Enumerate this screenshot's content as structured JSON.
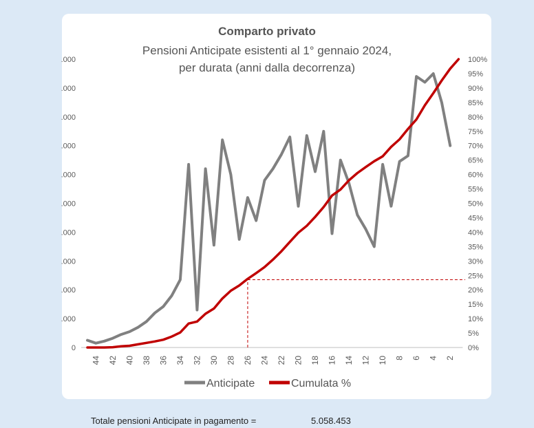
{
  "chart_data": {
    "type": "line",
    "title": "Comparto privato",
    "subtitle_line1": "Pensioni Anticipate esistenti al 1° gennaio 2024,",
    "subtitle_line2": "per durata (anni dalla decorrenza)",
    "x": [
      45,
      44,
      43,
      42,
      41,
      40,
      39,
      38,
      37,
      36,
      35,
      34,
      33,
      32,
      31,
      30,
      29,
      28,
      27,
      26,
      25,
      24,
      23,
      22,
      21,
      20,
      19,
      18,
      17,
      16,
      15,
      14,
      13,
      12,
      11,
      10,
      9,
      8,
      7,
      6,
      5,
      4,
      3,
      2,
      1
    ],
    "x_ticks": [
      "44",
      "42",
      "40",
      "38",
      "36",
      "34",
      "32",
      "30",
      "28",
      "26",
      "24",
      "22",
      "20",
      "18",
      "16",
      "14",
      "12",
      "10",
      "8",
      "6",
      "4",
      "2"
    ],
    "left_tick_labels": [
      "0",
      ".000",
      ".000",
      ".000",
      ".000",
      ".000",
      ".000",
      ".000",
      ".000",
      ".000",
      ".000"
    ],
    "right_tick_labels": [
      "0%",
      "5%",
      "10%",
      "15%",
      "20%",
      "25%",
      "30%",
      "35%",
      "40%",
      "45%",
      "50%",
      "55%",
      "60%",
      "65%",
      "70%",
      "75%",
      "80%",
      "85%",
      "90%",
      "95%",
      "100%"
    ],
    "y_left_range": [
      0,
      10
    ],
    "y_right_range": [
      0,
      100
    ],
    "series": [
      {
        "name": "Anticipate",
        "color": "#808080",
        "axis": "left",
        "values": [
          0.25,
          0.15,
          0.22,
          0.32,
          0.45,
          0.55,
          0.7,
          0.9,
          1.2,
          1.42,
          1.8,
          2.35,
          6.35,
          1.3,
          6.2,
          3.55,
          7.2,
          6.0,
          3.75,
          5.2,
          4.4,
          5.8,
          6.2,
          6.7,
          7.3,
          4.9,
          7.35,
          6.1,
          7.5,
          3.95,
          6.5,
          5.7,
          4.6,
          4.1,
          3.5,
          6.35,
          4.9,
          6.45,
          6.65,
          9.4,
          9.2,
          9.5,
          8.5,
          7.0,
          null
        ]
      },
      {
        "name": "Cumulata %",
        "color": "#c00000",
        "axis": "right",
        "values": [
          0,
          0,
          0,
          0.1,
          0.4,
          0.6,
          1.1,
          1.6,
          2.1,
          2.7,
          3.8,
          5.2,
          8.3,
          9.0,
          11.7,
          13.5,
          17.0,
          19.7,
          21.5,
          23.8,
          25.8,
          27.9,
          30.5,
          33.4,
          36.6,
          39.8,
          42.2,
          45.3,
          48.7,
          52.7,
          54.8,
          58.0,
          60.5,
          62.6,
          64.6,
          66.3,
          69.6,
          72.2,
          75.8,
          79.1,
          84.0,
          88.2,
          92.6,
          96.7,
          100
        ]
      }
    ],
    "reference_point": {
      "x": 26,
      "y_percent": 23.5
    },
    "legend_position": "bottom",
    "grid": false
  },
  "footer": {
    "label": "Totale pensioni Anticipate in pagamento =",
    "value": "5.058.453"
  }
}
